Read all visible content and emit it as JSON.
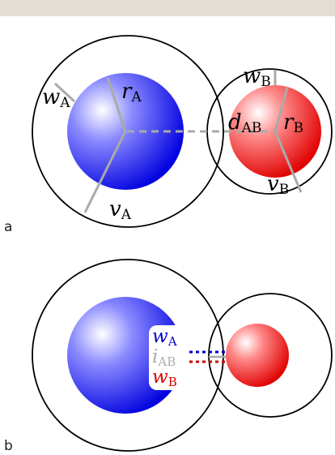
{
  "panel_a": {
    "label": "a",
    "w_a": {
      "sym": "w",
      "sub": "A"
    },
    "r_a": {
      "sym": "r",
      "sub": "A"
    },
    "v_a": {
      "sym": "v",
      "sub": "A"
    },
    "w_b": {
      "sym": "w",
      "sub": "B"
    },
    "r_b": {
      "sym": "r",
      "sub": "B"
    },
    "v_b": {
      "sym": "v",
      "sub": "B"
    },
    "d_ab": {
      "sym": "d",
      "sub": "AB"
    }
  },
  "panel_b": {
    "label": "b",
    "w_a": {
      "sym": "w",
      "sub": "A"
    },
    "i_ab": {
      "sym": "i",
      "sub": "AB"
    },
    "w_b": {
      "sym": "w",
      "sub": "B"
    }
  },
  "colors": {
    "sphere_a": "#0000ee",
    "sphere_b": "#ee0000",
    "guide_line": "#aaaaaa",
    "outline": "#000000",
    "topbar": "#e2ded5"
  }
}
